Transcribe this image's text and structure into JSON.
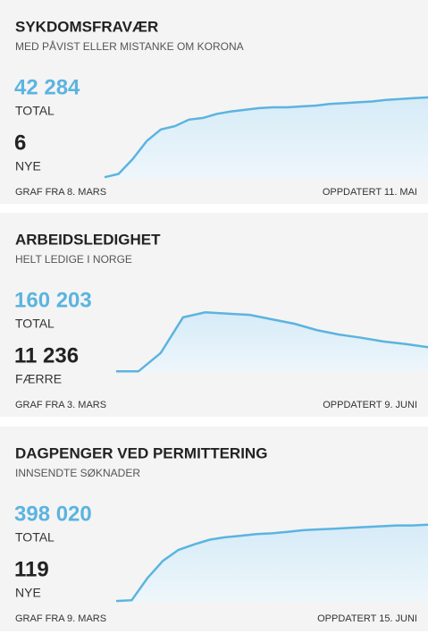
{
  "cards": [
    {
      "title": "SYKDOMSFRAVÆR",
      "subtitle": "MED PÅVIST ELLER MISTANKE OM KORONA",
      "total": "42 284",
      "total_label": "TOTAL",
      "change": "6",
      "change_label": "NYE",
      "from": "GRAF FRA 8. MARS",
      "updated": "OPPDATERT 11. MAI",
      "chart": {
        "type": "line",
        "ylim": [
          0,
          100
        ],
        "values": [
          2,
          6,
          24,
          46,
          60,
          64,
          72,
          74,
          79,
          82,
          84,
          86,
          87,
          87,
          88,
          89,
          91,
          92,
          93,
          94,
          96,
          97,
          98,
          99
        ]
      }
    },
    {
      "title": "ARBEIDSLEDIGHET",
      "subtitle": "HELT LEDIGE I NORGE",
      "total": "160 203",
      "total_label": "TOTAL",
      "change": "11 236",
      "change_label": "FÆRRE",
      "from": "GRAF FRA 3. MARS",
      "updated": "OPPDATERT 9. JUNI",
      "chart": {
        "type": "line",
        "ylim": [
          0,
          100
        ],
        "values": [
          1,
          1,
          30,
          86,
          94,
          92,
          90,
          83,
          76,
          66,
          59,
          54,
          48,
          44,
          39
        ]
      }
    },
    {
      "title": "DAGPENGER VED PERMITTERING",
      "subtitle": "INNSENDTE SØKNADER",
      "total": "398 020",
      "total_label": "TOTAL",
      "change": "119",
      "change_label": "NYE",
      "from": "GRAF FRA 9. MARS",
      "updated": "OPPDATERT 15. JUNI",
      "chart": {
        "type": "line",
        "ylim": [
          0,
          100
        ],
        "values": [
          1,
          2,
          30,
          52,
          66,
          73,
          79,
          82,
          84,
          86,
          87,
          89,
          91,
          92,
          93,
          94,
          95,
          96,
          97,
          97,
          98
        ]
      }
    }
  ]
}
